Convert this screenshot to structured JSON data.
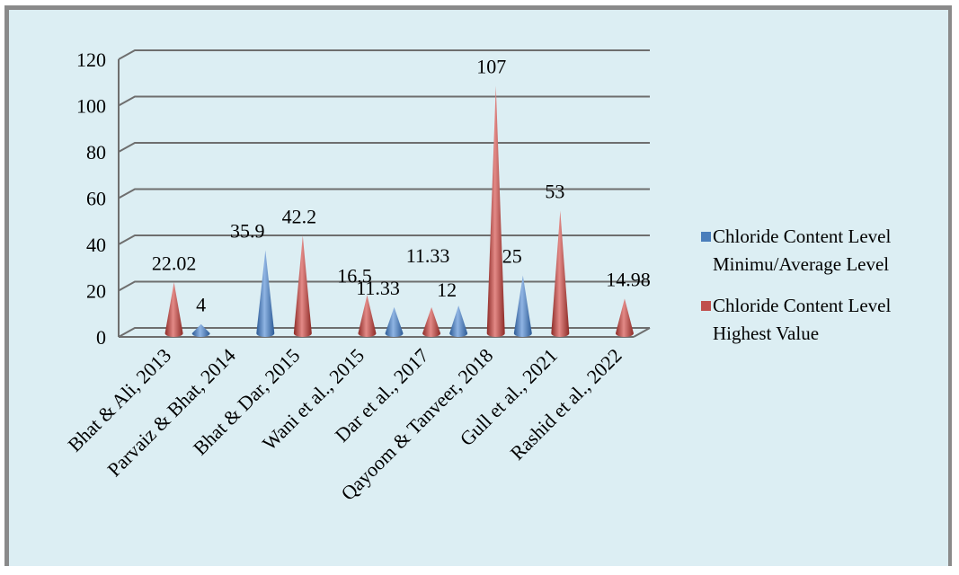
{
  "chart_data": {
    "type": "bar",
    "categories": [
      "Bhat & Ali, 2013",
      "Parvaiz & Bhat, 2014",
      "Bhat & Dar, 2015",
      "Wani et al., 2015",
      "Dar et al., 2017",
      "Qayoom & Tanveer, 2018",
      "Gull et al., 2021",
      "Rashid et al., 2022"
    ],
    "series": [
      {
        "name": "Chloride Content Level Minimu/Average Level",
        "name_lines": [
          "Chloride Content Level",
          "Minimu/Average Level"
        ],
        "color": "#4a7ebb",
        "values": [
          null,
          4,
          35.9,
          null,
          11.33,
          12,
          25,
          null
        ],
        "labels": [
          null,
          "4",
          "35.9",
          null,
          "11.33",
          "12",
          "25",
          null
        ]
      },
      {
        "name": "Chloride Content Level Highest Value",
        "name_lines": [
          "Chloride Content Level",
          "Highest Value"
        ],
        "color": "#c0504d",
        "values": [
          22.02,
          null,
          42.2,
          16.5,
          11.33,
          107,
          53,
          14.98
        ],
        "labels": [
          "22.02",
          null,
          "42.2",
          "16.5",
          "11.33",
          "107",
          "53",
          "14.98"
        ]
      }
    ],
    "y_ticks": [
      "0",
      "20",
      "40",
      "60",
      "80",
      "100",
      "120"
    ],
    "ylim": [
      0,
      120
    ],
    "grid": true,
    "legend_position": "right"
  }
}
